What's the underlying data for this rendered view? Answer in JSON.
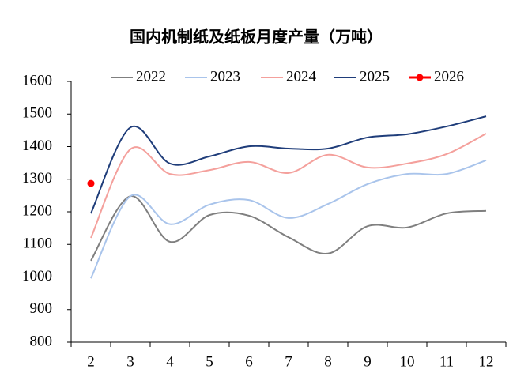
{
  "chart_data": {
    "type": "line",
    "title": "国内机制纸及纸板月度产量（万吨）",
    "categories": [
      "2",
      "3",
      "4",
      "5",
      "6",
      "7",
      "8",
      "9",
      "10",
      "11",
      "12"
    ],
    "series": [
      {
        "name": "2022",
        "color": "#7f7f7f",
        "values": [
          1050,
          1248,
          1108,
          1190,
          1188,
          1122,
          1072,
          1156,
          1152,
          1195,
          1203
        ]
      },
      {
        "name": "2023",
        "color": "#a9c4eb",
        "values": [
          996,
          1248,
          1162,
          1222,
          1236,
          1181,
          1224,
          1285,
          1316,
          1316,
          1358
        ]
      },
      {
        "name": "2024",
        "color": "#f4a09c",
        "values": [
          1120,
          1392,
          1316,
          1328,
          1353,
          1319,
          1375,
          1336,
          1348,
          1377,
          1440
        ]
      },
      {
        "name": "2025",
        "color": "#1f3d7a",
        "values": [
          1195,
          1459,
          1348,
          1370,
          1401,
          1394,
          1394,
          1428,
          1438,
          1462,
          1493
        ]
      },
      {
        "name": "2026",
        "color": "#ff0000",
        "marker": "circle",
        "values": [
          1287,
          null,
          null,
          null,
          null,
          null,
          null,
          null,
          null,
          null,
          null
        ]
      }
    ],
    "ylim": [
      800,
      1600
    ],
    "yticks": [
      800,
      900,
      1000,
      1100,
      1200,
      1300,
      1400,
      1500,
      1600
    ],
    "grid": false,
    "legend": "top"
  }
}
